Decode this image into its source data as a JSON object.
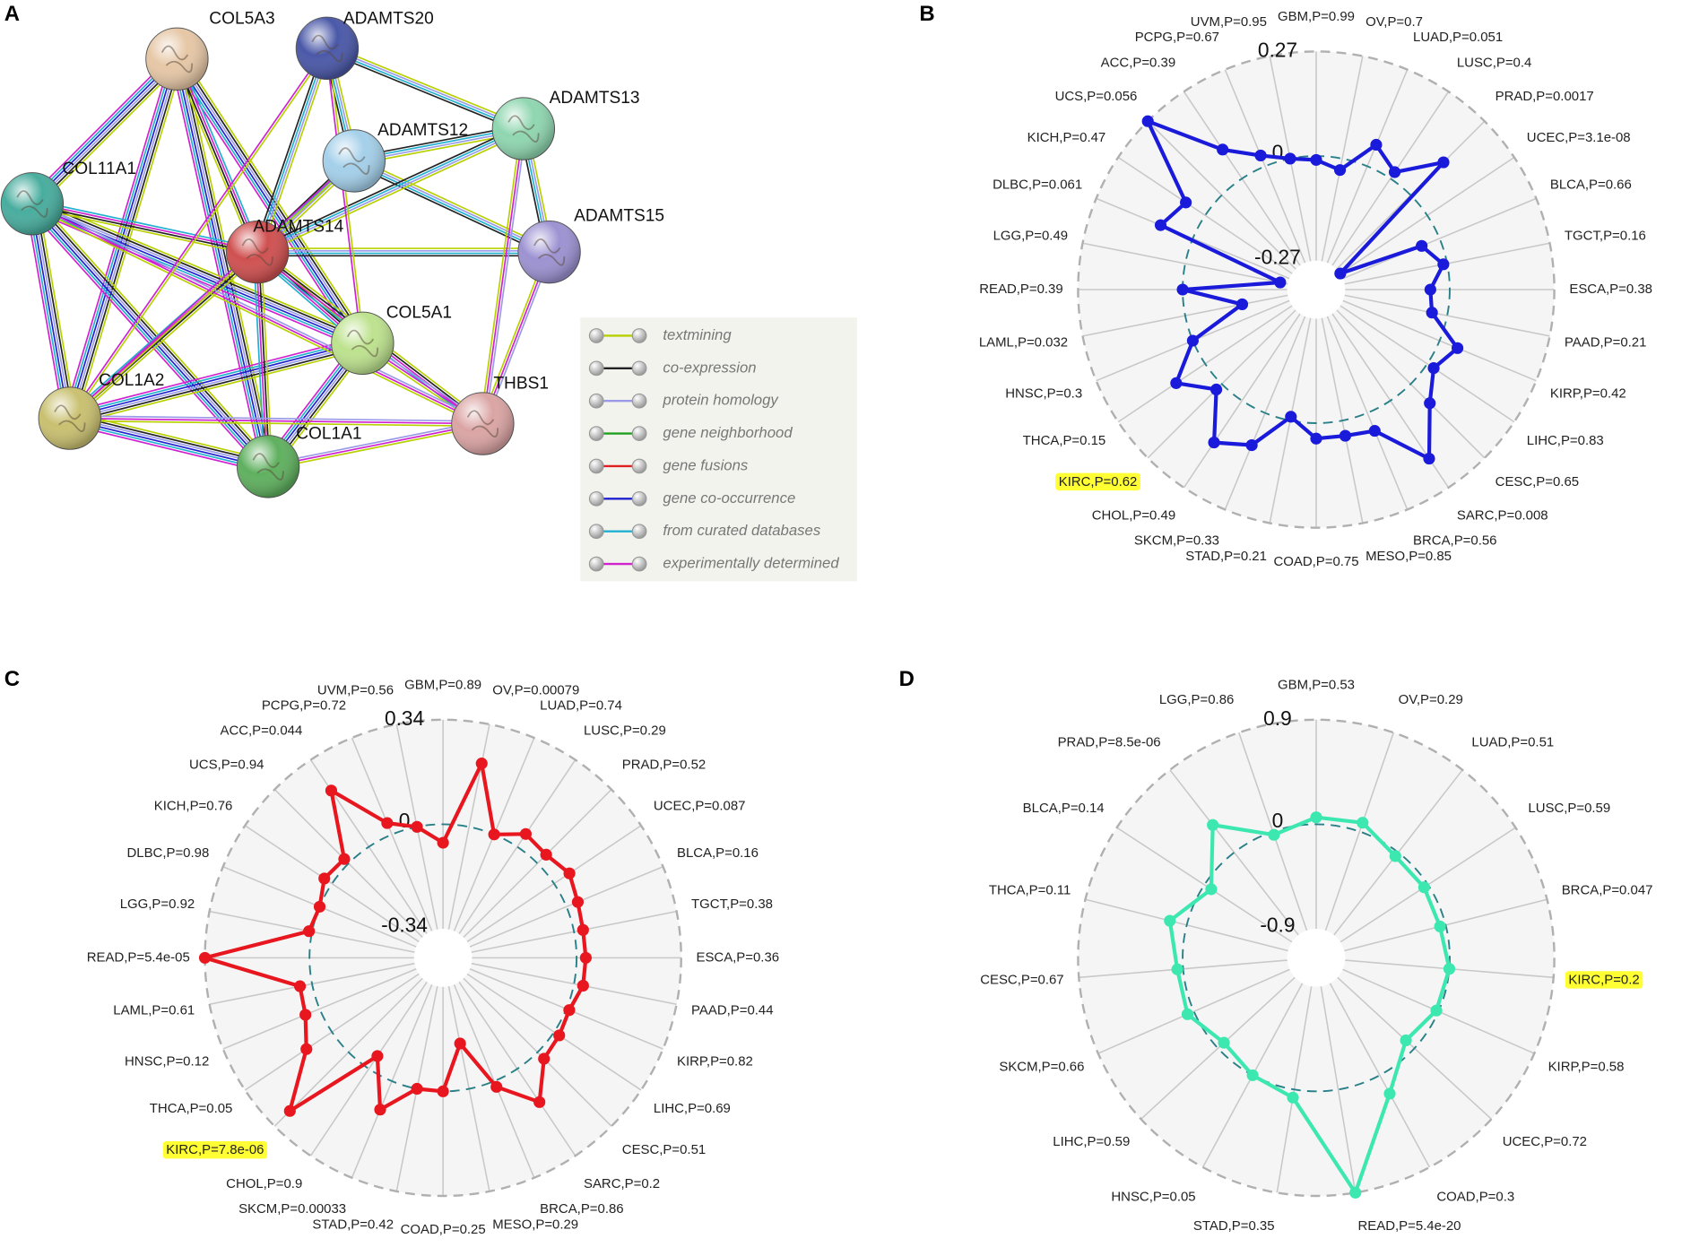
{
  "network": {
    "panel": "A",
    "nodes": [
      {
        "label": "COL5A3",
        "color": "#e6c7a6"
      },
      {
        "label": "ADAMTS20",
        "color": "#4a58a8"
      },
      {
        "label": "ADAMTS13",
        "color": "#8fd6b0"
      },
      {
        "label": "ADAMTS12",
        "color": "#a4d0ea"
      },
      {
        "label": "COL11A1",
        "color": "#48ad9e"
      },
      {
        "label": "ADAMTS14",
        "color": "#d05050"
      },
      {
        "label": "ADAMTS15",
        "color": "#9d92d2"
      },
      {
        "label": "COL5A1",
        "color": "#bde28e"
      },
      {
        "label": "COL1A2",
        "color": "#c9c070"
      },
      {
        "label": "THBS1",
        "color": "#dba4a4"
      },
      {
        "label": "COL1A1",
        "color": "#5fb05f"
      }
    ],
    "legend": [
      {
        "label": "textmining",
        "color": "#b8d000"
      },
      {
        "label": "co-expression",
        "color": "#222222"
      },
      {
        "label": "protein homology",
        "color": "#9a9ae8"
      },
      {
        "label": "gene neighborhood",
        "color": "#20a020"
      },
      {
        "label": "gene fusions",
        "color": "#e02020"
      },
      {
        "label": "gene co-occurrence",
        "color": "#2020d0"
      },
      {
        "label": "from curated databases",
        "color": "#20b0d0"
      },
      {
        "label": "experimentally determined",
        "color": "#d020d0"
      }
    ]
  },
  "chart_data": [
    {
      "type": "radar",
      "panel": "B",
      "color": "#1a1adb",
      "ylim": [
        -0.27,
        0.27
      ],
      "yticks": [
        -0.27,
        0,
        0.27
      ],
      "highlight": {
        "index": 20,
        "color": "#ffff33"
      },
      "categories": [
        "GBM,P=0.99",
        "OV,P=0.7",
        "LUAD,P=0.051",
        "LUSC,P=0.4",
        "PRAD,P=0.0017",
        "UCEC,P=3.1e-08",
        "BLCA,P=0.66",
        "TGCT,P=0.16",
        "ESCA,P=0.38",
        "PAAD,P=0.21",
        "KIRP,P=0.42",
        "LIHC,P=0.83",
        "CESC,P=0.65",
        "SARC,P=0.008",
        "BRCA,P=0.56",
        "MESO,P=0.85",
        "COAD,P=0.75",
        "STAD,P=0.21",
        "SKCM,P=0.33",
        "CHOL,P=0.49",
        "KIRC,P=0.62",
        "THCA,P=0.15",
        "HNSC,P=0.3",
        "LAML,P=0.032",
        "READ,P=0.39",
        "LGG,P=0.49",
        "DLBC,P=0.061",
        "KICH,P=0.47",
        "UCS,P=0.056",
        "ACC,P=0.39",
        "PCPG,P=0.67",
        "UVM,P=0.95"
      ],
      "values": [
        -0.01,
        -0.03,
        0.06,
        0.02,
        0.12,
        -0.27,
        -0.05,
        -0.01,
        -0.05,
        -0.04,
        0.05,
        0.02,
        0.07,
        0.18,
        0.05,
        0.04,
        0.04,
        -0.01,
        0.09,
        0.13,
        0.02,
        0.09,
        0.0,
        -0.15,
        0.0,
        -0.25,
        0.09,
        0.06,
        0.27,
        0.09,
        0.03,
        0.0
      ]
    },
    {
      "type": "radar",
      "panel": "C",
      "color": "#e8161e",
      "ylim": [
        -0.34,
        0.34
      ],
      "yticks": [
        -0.34,
        0,
        0.34
      ],
      "highlight": {
        "index": 20,
        "color": "#ffff33"
      },
      "categories": [
        "GBM,P=0.89",
        "OV,P=0.00079",
        "LUAD,P=0.74",
        "LUSC,P=0.29",
        "PRAD,P=0.52",
        "UCEC,P=0.087",
        "BLCA,P=0.16",
        "TGCT,P=0.38",
        "ESCA,P=0.36",
        "PAAD,P=0.44",
        "KIRP,P=0.82",
        "LIHC,P=0.69",
        "CESC,P=0.51",
        "SARC,P=0.2",
        "BRCA,P=0.86",
        "MESO,P=0.29",
        "COAD,P=0.25",
        "STAD,P=0.42",
        "SKCM,P=0.00033",
        "CHOL,P=0.9",
        "KIRC,P=7.8e-06",
        "THCA,P=0.05",
        "HNSC,P=0.12",
        "LAML,P=0.61",
        "READ,P=5.4e-05",
        "LGG,P=0.92",
        "DLBC,P=0.98",
        "KICH,P=0.76",
        "UCS,P=0.94",
        "ACC,P=0.044",
        "PCPG,P=0.72",
        "UVM,P=0.56"
      ],
      "values": [
        -0.06,
        0.21,
        0.0,
        0.05,
        0.04,
        0.06,
        0.04,
        0.03,
        0.03,
        0.03,
        0.01,
        0.02,
        0.03,
        0.13,
        0.02,
        -0.15,
        0.0,
        0.0,
        0.1,
        -0.05,
        0.27,
        0.1,
        0.05,
        0.04,
        0.34,
        0.01,
        0.0,
        0.03,
        0.02,
        0.22,
        0.04,
        0.0
      ]
    },
    {
      "type": "radar",
      "panel": "D",
      "color": "#3de8b0",
      "ylim": [
        -0.9,
        0.9
      ],
      "yticks": [
        -0.9,
        0,
        0.9
      ],
      "highlight": {
        "index": 5,
        "color": "#ffff33"
      },
      "categories": [
        "GBM,P=0.53",
        "OV,P=0.29",
        "LUAD,P=0.51",
        "LUSC,P=0.59",
        "BRCA,P=0.047",
        "KIRC,P=0.2",
        "KIRP,P=0.58",
        "UCEC,P=0.72",
        "COAD,P=0.3",
        "READ,P=5.4e-20",
        "STAD,P=0.35",
        "HNSC,P=0.05",
        "LIHC,P=0.59",
        "SKCM,P=0.66",
        "CESC,P=0.67",
        "THCA,P=0.11",
        "BLCA,P=0.14",
        "PRAD,P=8.5e-06",
        "LGG,P=0.86"
      ],
      "values": [
        0.06,
        0.08,
        -0.04,
        -0.04,
        -0.05,
        0.0,
        -0.02,
        -0.1,
        0.18,
        0.9,
        0.07,
        0.0,
        -0.07,
        0.06,
        0.05,
        0.15,
        -0.07,
        0.3,
        -0.03
      ]
    }
  ]
}
